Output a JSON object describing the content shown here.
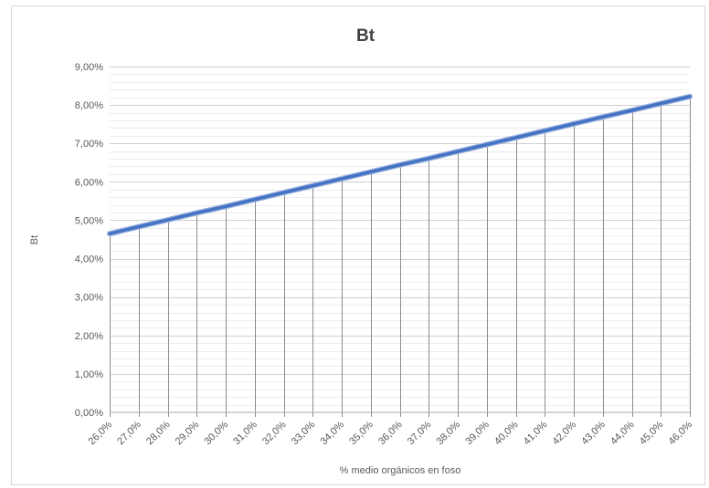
{
  "chart_data": {
    "type": "line",
    "title": "Bt",
    "xlabel": "% medio orgánicos en foso",
    "ylabel": "Bt",
    "categories": [
      "26,0%",
      "27,0%",
      "28,0%",
      "29,0%",
      "30,0%",
      "31,0%",
      "32,0%",
      "33,0%",
      "34,0%",
      "35,0%",
      "36,0%",
      "37,0%",
      "38,0%",
      "39,0%",
      "40,0%",
      "41,0%",
      "42,0%",
      "43,0%",
      "44,0%",
      "45,0%",
      "46,0%"
    ],
    "series": [
      {
        "name": "",
        "color": "#4472c4",
        "values": [
          4.65,
          4.83,
          5.01,
          5.19,
          5.36,
          5.54,
          5.72,
          5.9,
          6.08,
          6.26,
          6.44,
          6.61,
          6.79,
          6.97,
          7.15,
          7.33,
          7.51,
          7.69,
          7.86,
          8.04,
          8.22
        ]
      }
    ],
    "y_ticks": [
      "0,00%",
      "1,00%",
      "2,00%",
      "3,00%",
      "4,00%",
      "5,00%",
      "6,00%",
      "7,00%",
      "8,00%",
      "9,00%"
    ],
    "ylim": [
      0,
      9
    ],
    "y_minor_step": 0.2,
    "grid": true,
    "drop_lines": true,
    "legend": "none"
  }
}
